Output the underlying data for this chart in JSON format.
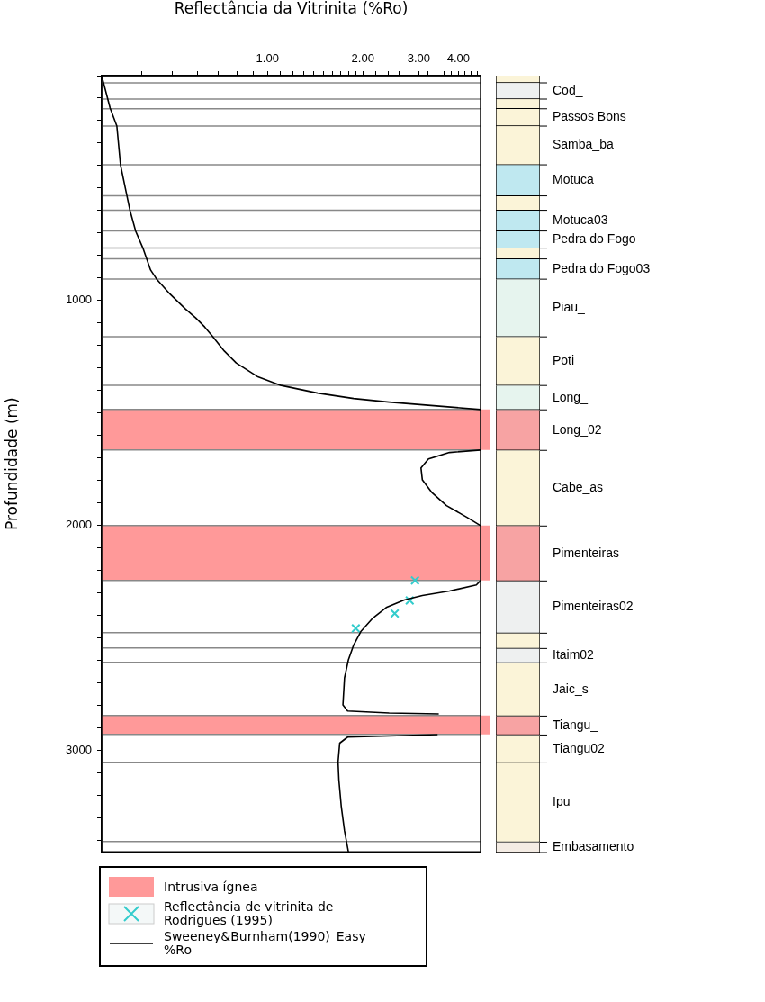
{
  "chart_data": [
    {
      "type": "line",
      "xlabel": "Reflectância da Vitrinita (%Ro)",
      "ylabel": "Profundidade (m)",
      "log": "x",
      "xlim": [
        0.3,
        4.7
      ],
      "ylim": [
        3450,
        0
      ],
      "xticks": [
        {
          "value": 0.4,
          "label": null
        },
        {
          "value": 0.5,
          "label": null
        },
        {
          "value": 0.6,
          "label": null
        },
        {
          "value": 0.7,
          "label": null
        },
        {
          "value": 0.8,
          "label": null
        },
        {
          "value": 0.9,
          "label": null
        },
        {
          "value": 1,
          "label": "1.00"
        },
        {
          "value": 1.1,
          "label": null
        },
        {
          "value": 1.2,
          "label": null
        },
        {
          "value": 1.3,
          "label": null
        },
        {
          "value": 1.4,
          "label": null
        },
        {
          "value": 1.5,
          "label": null
        },
        {
          "value": 1.6,
          "label": null
        },
        {
          "value": 1.7,
          "label": null
        },
        {
          "value": 1.8,
          "label": null
        },
        {
          "value": 1.9,
          "label": null
        },
        {
          "value": 2,
          "label": "2.00"
        },
        {
          "value": 2.2,
          "label": null
        },
        {
          "value": 2.4,
          "label": null
        },
        {
          "value": 2.6,
          "label": null
        },
        {
          "value": 2.8,
          "label": null
        },
        {
          "value": 3,
          "label": "3.00"
        },
        {
          "value": 3.2,
          "label": null
        },
        {
          "value": 3.4,
          "label": null
        },
        {
          "value": 3.6,
          "label": null
        },
        {
          "value": 3.8,
          "label": null
        },
        {
          "value": 4,
          "label": "4.00"
        },
        {
          "value": 4.2,
          "label": null
        },
        {
          "value": 4.4,
          "label": null
        },
        {
          "value": 4.6,
          "label": null
        }
      ],
      "yticks": [
        {
          "value": 0,
          "label": null
        },
        {
          "value": 100,
          "label": null
        },
        {
          "value": 200,
          "label": null
        },
        {
          "value": 300,
          "label": null
        },
        {
          "value": 400,
          "label": null
        },
        {
          "value": 500,
          "label": null
        },
        {
          "value": 600,
          "label": null
        },
        {
          "value": 700,
          "label": null
        },
        {
          "value": 800,
          "label": null
        },
        {
          "value": 900,
          "label": null
        },
        1000,
        {
          "value": 1100,
          "label": null
        },
        {
          "value": 1200,
          "label": null
        },
        {
          "value": 1300,
          "label": null
        },
        {
          "value": 1400,
          "label": null
        },
        {
          "value": 1500,
          "label": null
        },
        {
          "value": 1600,
          "label": null
        },
        {
          "value": 1700,
          "label": null
        },
        {
          "value": 1800,
          "label": null
        },
        {
          "value": 1900,
          "label": null
        },
        2000,
        {
          "value": 2100,
          "label": null
        },
        {
          "value": 2200,
          "label": null
        },
        {
          "value": 2300,
          "label": null
        },
        {
          "value": 2400,
          "label": null
        },
        {
          "value": 2500,
          "label": null
        },
        {
          "value": 2600,
          "label": null
        },
        {
          "value": 2700,
          "label": null
        },
        {
          "value": 2800,
          "label": null
        },
        {
          "value": 2900,
          "label": null
        },
        3000,
        {
          "value": 3100,
          "label": null
        },
        {
          "value": 3200,
          "label": null
        },
        {
          "value": 3300,
          "label": null
        },
        {
          "value": 3400,
          "label": null
        }
      ],
      "legend": "bottom",
      "series": [
        {
          "name": "Sweeney&Burnham(1990)_Easy %Ro",
          "type": "line",
          "color": "#000000",
          "marker": "none",
          "x": [
            0.3,
            0.319,
            0.335,
            0.344,
            0.36,
            0.368,
            0.384,
            0.406,
            0.428,
            0.447,
            0.493,
            0.551,
            0.594,
            0.634,
            0.67,
            0.731,
            0.797,
            0.929,
            1.105,
            1.44,
            1.87,
            2.42,
            3.15,
            4.7,
            null,
            4.7,
            3.75,
            3.22,
            3.05,
            3.08,
            3.29,
            3.67,
            4.27,
            4.7,
            null,
            4.7,
            4.56,
            3.75,
            3.08,
            2.7,
            2.37,
            2.15,
            1.97,
            1.87,
            1.8,
            1.75,
            1.73,
            1.79,
            2.42,
            3.47,
            null,
            3.44,
            2.42,
            1.79,
            1.69,
            1.67,
            1.68,
            1.71,
            1.75,
            1.8
          ],
          "values": [
            0,
            144,
            224,
            397,
            531,
            596,
            691,
            771,
            864,
            904,
            971,
            1037,
            1077,
            1117,
            1157,
            1224,
            1277,
            1337,
            1377,
            1411,
            1435,
            1451,
            1464,
            1484,
            null,
            1664,
            1675,
            1704,
            1744,
            1797,
            1851,
            1911,
            1964,
            2000,
            null,
            2244,
            2264,
            2291,
            2311,
            2331,
            2364,
            2411,
            2471,
            2531,
            2597,
            2677,
            2797,
            2824,
            2833,
            2837,
            null,
            2929,
            2935,
            2940,
            2967,
            3051,
            3131,
            3251,
            3357,
            3450
          ]
        },
        {
          "name": "Reflectância de vitrinita de Rodrigues (1995)",
          "type": "scatter",
          "color": "#33cccc",
          "marker": "cross",
          "x": [
            2.92,
            2.81,
            2.52,
            1.9
          ],
          "values": [
            2244,
            2333,
            2391,
            2457
          ]
        }
      ],
      "bands": [
        {
          "axis": "y",
          "from": 1484,
          "to": 1664,
          "label": "Intrusiva ígnea",
          "color": "#ff9999"
        },
        {
          "axis": "y",
          "from": 2000,
          "to": 2244,
          "color": "#ff9999"
        },
        {
          "axis": "y",
          "from": 2844,
          "to": 2928,
          "color": "#ff9999"
        }
      ],
      "ref_lines": [
        {
          "axis": "y",
          "value": 32
        },
        {
          "axis": "y",
          "value": 104
        },
        {
          "axis": "y",
          "value": 147
        },
        {
          "axis": "y",
          "value": 224
        },
        {
          "axis": "y",
          "value": 396
        },
        {
          "axis": "y",
          "value": 534
        },
        {
          "axis": "y",
          "value": 598
        },
        {
          "axis": "y",
          "value": 690
        },
        {
          "axis": "y",
          "value": 766
        },
        {
          "axis": "y",
          "value": 814
        },
        {
          "axis": "y",
          "value": 904
        },
        {
          "axis": "y",
          "value": 1160
        },
        {
          "axis": "y",
          "value": 1376
        },
        {
          "axis": "y",
          "value": 2476
        },
        {
          "axis": "y",
          "value": 2544
        },
        {
          "axis": "y",
          "value": 2608
        },
        {
          "axis": "y",
          "value": 3052
        },
        {
          "axis": "y",
          "value": 3404
        }
      ]
    },
    {
      "type": "bar",
      "stacked": true,
      "categories": [
        null
      ],
      "ylim": [
        3450,
        0
      ],
      "tick_labels": false,
      "series": [
        {
          "color": "#fbf4d8",
          "values": [
            32
          ]
        },
        {
          "name": "Cod_",
          "color": "#eef0f0",
          "values": [
            72
          ]
        },
        {
          "color": "#fbf4d8",
          "values": [
            43
          ]
        },
        {
          "name": "Passos Bons",
          "color": "#fbf4d8",
          "values": [
            77
          ]
        },
        {
          "name": "Samba_ba",
          "color": "#fbf4d8",
          "values": [
            172
          ]
        },
        {
          "name": "Motuca",
          "color": "#bfe8f0",
          "values": [
            138
          ]
        },
        {
          "color": "#fbf4d8",
          "values": [
            64
          ]
        },
        {
          "name": "Motuca03",
          "color": "#bfe8f0",
          "values": [
            92
          ]
        },
        {
          "name": "Pedra do Fogo",
          "color": "#bfe8f0",
          "values": [
            76
          ]
        },
        {
          "color": "#fbf4d8",
          "values": [
            48
          ]
        },
        {
          "name": "Pedra do Fogo03",
          "color": "#bfe8f0",
          "values": [
            90
          ]
        },
        {
          "name": "Piau_",
          "color": "#e6f4ee",
          "values": [
            256
          ]
        },
        {
          "name": "Poti",
          "color": "#fbf4d8",
          "values": [
            216
          ]
        },
        {
          "name": "Long_",
          "color": "#e6f4ee",
          "values": [
            108
          ]
        },
        {
          "name": "Long_02",
          "color": "#f7a3a3",
          "values": [
            180
          ]
        },
        {
          "name": "Cabe_as",
          "color": "#fbf4d8",
          "values": [
            336
          ]
        },
        {
          "name": "Pimenteiras",
          "color": "#f7a3a3",
          "values": [
            244
          ]
        },
        {
          "name": "Pimenteiras02",
          "color": "#eef0f0",
          "values": [
            232
          ]
        },
        {
          "color": "#fbf4d8",
          "values": [
            68
          ]
        },
        {
          "name": "Itaim02",
          "color": "#eef0f0",
          "values": [
            64
          ]
        },
        {
          "name": "Jaic_s",
          "color": "#fbf4d8",
          "values": [
            236
          ]
        },
        {
          "name": "Tiangu_",
          "color": "#f7a3a3",
          "values": [
            84
          ]
        },
        {
          "name": "Tiangu02",
          "color": "#fbf4d8",
          "values": [
            124
          ]
        },
        {
          "name": "Ipu",
          "color": "#fbf4d8",
          "values": [
            352
          ]
        },
        {
          "name": "Embasamento",
          "color": "#f4ece4",
          "values": [
            46
          ]
        }
      ]
    }
  ]
}
